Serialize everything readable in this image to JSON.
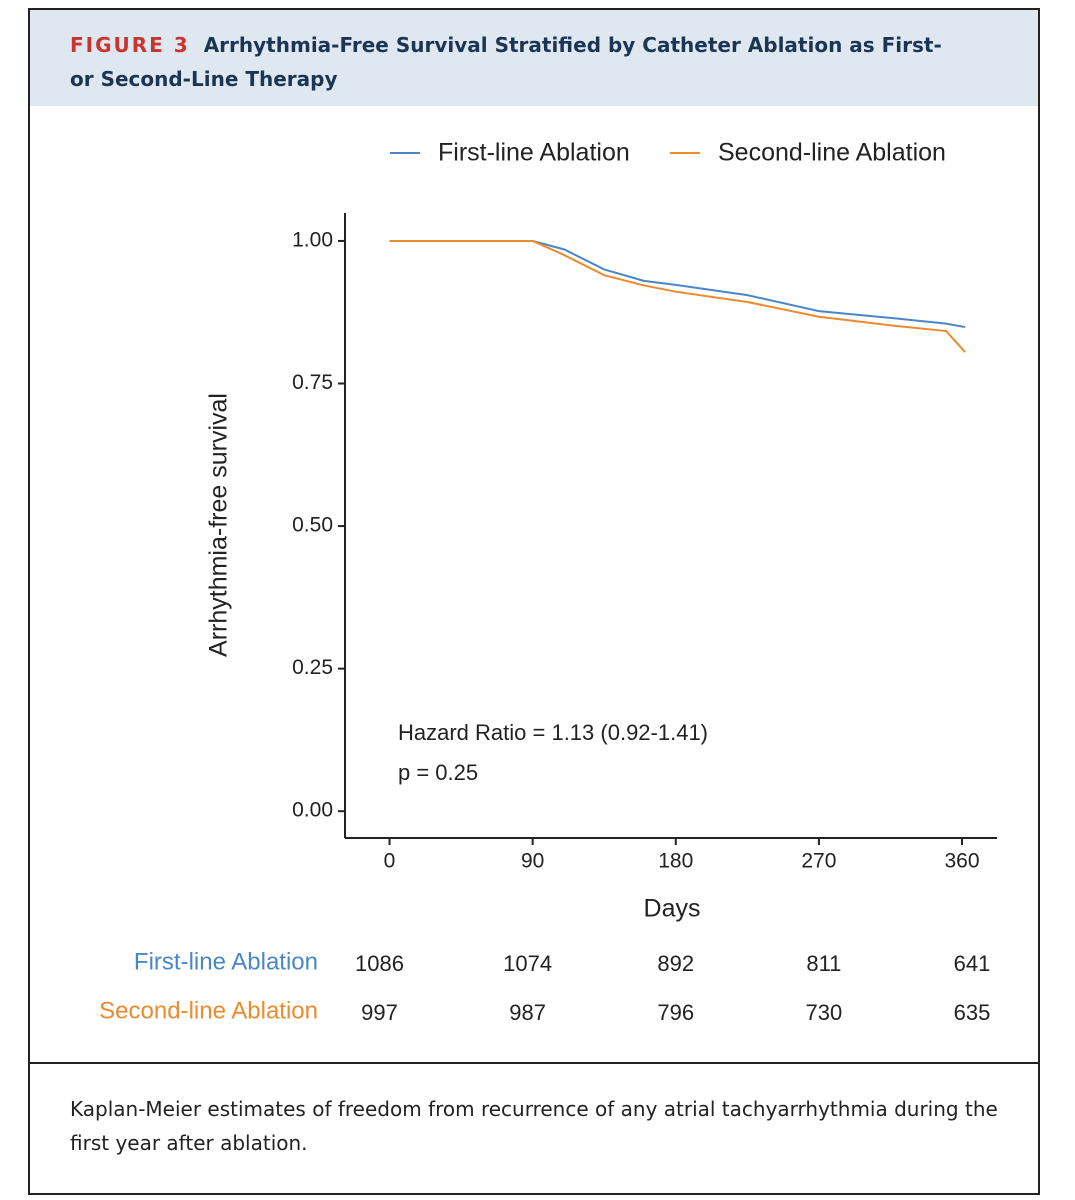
{
  "figure_label": "FIGURE 3",
  "title": "Arrhythmia-Free Survival Stratified by Catheter Ablation as First- or Second-Line Therapy",
  "caption": "Kaplan-Meier estimates of freedom from recurrence of any atrial tachyarrhythmia during the first year after ablation.",
  "chart_data": {
    "type": "line",
    "x_label": "Days",
    "y_label": "Arrhythmia-free survival",
    "x": [
      0,
      90,
      110,
      135,
      160,
      180,
      225,
      270,
      315,
      350,
      362
    ],
    "series": [
      {
        "name": "First-line Ablation",
        "color": "#4a86c8",
        "values": [
          1.0,
          1.0,
          0.985,
          0.95,
          0.93,
          0.923,
          0.905,
          0.877,
          0.865,
          0.855,
          0.849
        ]
      },
      {
        "name": "Second-line Ablation",
        "color": "#ee8a2e",
        "values": [
          1.0,
          1.0,
          0.975,
          0.94,
          0.922,
          0.911,
          0.893,
          0.867,
          0.852,
          0.842,
          0.805
        ]
      }
    ],
    "xlim": [
      -28,
      382
    ],
    "xticks": [
      0,
      90,
      180,
      270,
      360
    ],
    "ylim": [
      -0.047,
      1.049
    ],
    "yticks": [
      {
        "value": 0,
        "label": "0.00"
      },
      {
        "value": 0.25,
        "label": "0.25"
      },
      {
        "value": 0.5,
        "label": "0.50"
      },
      {
        "value": 0.75,
        "label": "0.75"
      },
      {
        "value": 1,
        "label": "1.00"
      }
    ],
    "legend": "top",
    "annotations": [
      "Hazard Ratio = 1.13 (0.92-1.41)",
      "p =  0.25"
    ],
    "risk_table": [
      [
        1086,
        1074,
        892,
        811,
        641
      ],
      [
        997,
        987,
        796,
        730,
        635
      ]
    ]
  }
}
